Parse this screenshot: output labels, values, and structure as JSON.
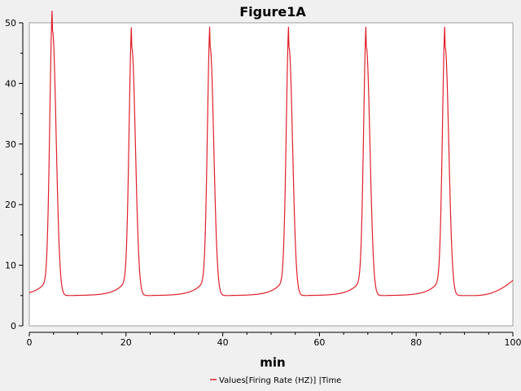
{
  "chart_data": {
    "type": "line",
    "title": "Figure1A",
    "xlabel": "min",
    "ylabel": "",
    "xlim": [
      0,
      100
    ],
    "ylim": [
      0,
      50
    ],
    "x_ticks": [
      0,
      20,
      40,
      60,
      80,
      100
    ],
    "y_ticks": [
      0,
      10,
      20,
      30,
      40,
      50
    ],
    "grid": false,
    "legend_position": "bottom",
    "series": [
      {
        "name": "Values[Firing Rate (HZ)] |Time",
        "color": "#e0202a",
        "peaks": [
          {
            "t": 4.8,
            "v": 48.7
          },
          {
            "t": 21.2,
            "v": 45.9
          },
          {
            "t": 37.4,
            "v": 46.0
          },
          {
            "t": 53.7,
            "v": 46.0
          },
          {
            "t": 69.7,
            "v": 46.0
          },
          {
            "t": 86.0,
            "v": 46.0
          }
        ],
        "baseline": 5.0,
        "start_value": 5.1,
        "end_value": 8.7,
        "x_start": 0,
        "x_end": 100
      }
    ]
  },
  "colors": {
    "background": "#f0f0f0",
    "plot_area": "#ffffff",
    "axis": "#000000",
    "series": "#e0202a"
  }
}
